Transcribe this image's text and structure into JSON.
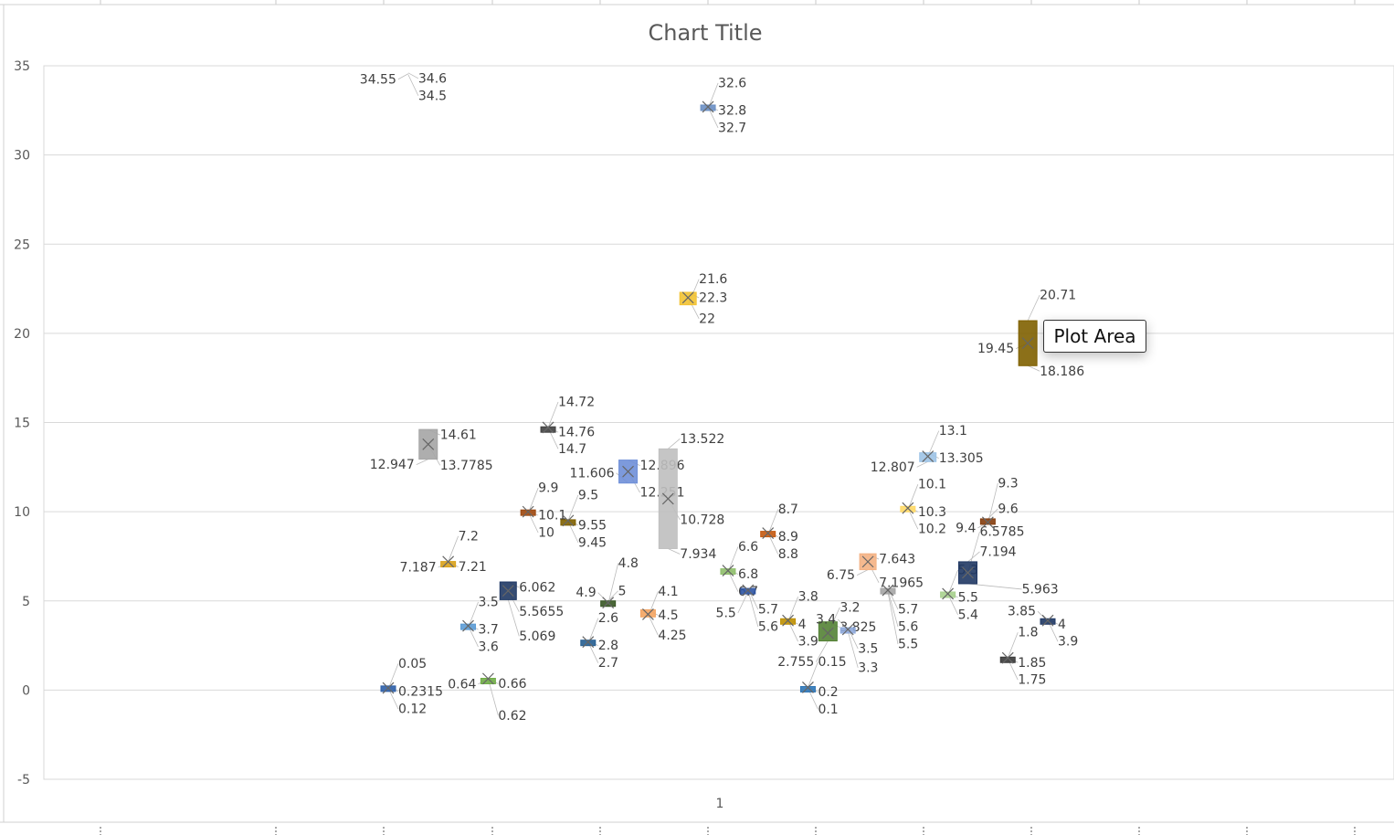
{
  "chart_data": {
    "type": "box",
    "title": "Chart Title",
    "categories": [
      "1"
    ],
    "ylim": [
      -5,
      35
    ],
    "yticks": [
      -5,
      0,
      5,
      10,
      15,
      20,
      25,
      30,
      35
    ],
    "grid": true,
    "legend": "none",
    "series": [
      {
        "color": "#2e5fa8",
        "min": 0.05,
        "mean": 0.12,
        "max": 0.2315
      },
      {
        "color": "#ffffff",
        "min": 34.5,
        "mean": 34.55,
        "max": 34.6
      },
      {
        "color": "#a5a5a5",
        "min": 12.947,
        "mean": 13.7785,
        "max": 14.61
      },
      {
        "color": "#d9a21b",
        "min": 7.187,
        "mean": 7.2,
        "max": 7.21
      },
      {
        "color": "#5b9bd5",
        "min": 3.5,
        "mean": 3.6,
        "max": 3.7
      },
      {
        "color": "#70ad47",
        "min": 0.62,
        "mean": 0.64,
        "max": 0.66
      },
      {
        "color": "#203864",
        "min": 5.069,
        "mean": 5.5655,
        "max": 6.062
      },
      {
        "color": "#9e480e",
        "min": 9.9,
        "mean": 10.0,
        "max": 10.1
      },
      {
        "color": "#404040",
        "min": 14.7,
        "mean": 14.72,
        "max": 14.76
      },
      {
        "color": "#806000",
        "min": 9.45,
        "mean": 9.5,
        "max": 9.55
      },
      {
        "color": "#255e91",
        "min": 2.6,
        "mean": 2.7,
        "max": 2.8
      },
      {
        "color": "#375623",
        "min": 4.8,
        "mean": 4.9,
        "max": 5.0
      },
      {
        "color": "#6f8fd8",
        "min": 11.606,
        "mean": 12.251,
        "max": 12.896
      },
      {
        "color": "#f4a460",
        "min": 4.1,
        "mean": 4.25,
        "max": 4.5
      },
      {
        "color": "#bfbfbf",
        "min": 7.934,
        "mean": 10.728,
        "max": 13.522
      },
      {
        "color": "#f2c232",
        "min": 21.6,
        "mean": 22.0,
        "max": 22.3
      },
      {
        "color": "#6a8fc4",
        "min": 32.6,
        "mean": 32.7,
        "max": 32.8
      },
      {
        "color": "#8fbf6a",
        "min": 6.6,
        "mean": 6.7,
        "max": 6.8
      },
      {
        "color": "#2f55a4",
        "min": 5.5,
        "mean": 5.6,
        "max": 5.7
      },
      {
        "color": "#c55a11",
        "min": 8.7,
        "mean": 8.8,
        "max": 8.9
      },
      {
        "color": "#bf9000",
        "min": 3.8,
        "mean": 3.9,
        "max": 4.0
      },
      {
        "color": "#2e75b6",
        "min": 0.1,
        "mean": 0.15,
        "max": 0.2
      },
      {
        "color": "#548235",
        "min": 2.755,
        "mean": 3.2,
        "max": 3.825
      },
      {
        "color": "#8faadc",
        "min": 3.3,
        "mean": 3.4,
        "max": 3.5
      },
      {
        "color": "#f4b183",
        "min": 6.75,
        "mean": 7.1965,
        "max": 7.643
      },
      {
        "color": "#a5a5a5",
        "min": 5.5,
        "mean": 5.6,
        "max": 5.7
      },
      {
        "color": "#ffd966",
        "min": 10.1,
        "mean": 10.2,
        "max": 10.3
      },
      {
        "color": "#9dc3e6",
        "min": 12.807,
        "mean": 13.1,
        "max": 13.305
      },
      {
        "color": "#a9d18e",
        "min": 5.3,
        "mean": 5.4,
        "max": 5.5
      },
      {
        "color": "#203864",
        "min": 5.963,
        "mean": 6.5785,
        "max": 7.194
      },
      {
        "color": "#843c0c",
        "min": 9.3,
        "mean": 9.4,
        "max": 9.6
      },
      {
        "color": "#3a3a3a",
        "min": 1.75,
        "mean": 1.8,
        "max": 1.85
      },
      {
        "color": "#7f6000",
        "min": 18.186,
        "mean": 19.45,
        "max": 20.71
      },
      {
        "color": "#1f3864",
        "min": 3.85,
        "mean": 3.9,
        "max": 4.0
      }
    ]
  },
  "tooltip": {
    "text": "Plot Area"
  }
}
